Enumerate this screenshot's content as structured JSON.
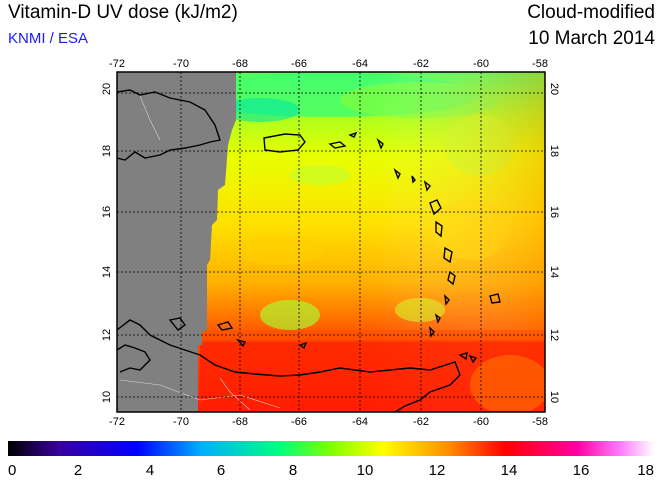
{
  "header": {
    "title": "Vitamin-D UV dose (kJ/m2)",
    "source": "KNMI / ESA",
    "mode": "Cloud-modified",
    "date": "10 March 2014"
  },
  "map": {
    "lon_labels": [
      "-72",
      "-70",
      "-68",
      "-66",
      "-64",
      "-62",
      "-60",
      "-58"
    ],
    "lat_labels": [
      "10",
      "12",
      "14",
      "16",
      "18",
      "20"
    ]
  },
  "colorbar": {
    "labels": [
      "0",
      "2",
      "4",
      "6",
      "8",
      "10",
      "12",
      "14",
      "16",
      "18"
    ],
    "colors": [
      "#000000",
      "#3a00a0",
      "#0000ff",
      "#00b0ff",
      "#00ff80",
      "#80ff00",
      "#ffff00",
      "#ff9000",
      "#ff0000",
      "#ff00a0",
      "#ff80ff",
      "#ffffff"
    ]
  }
}
